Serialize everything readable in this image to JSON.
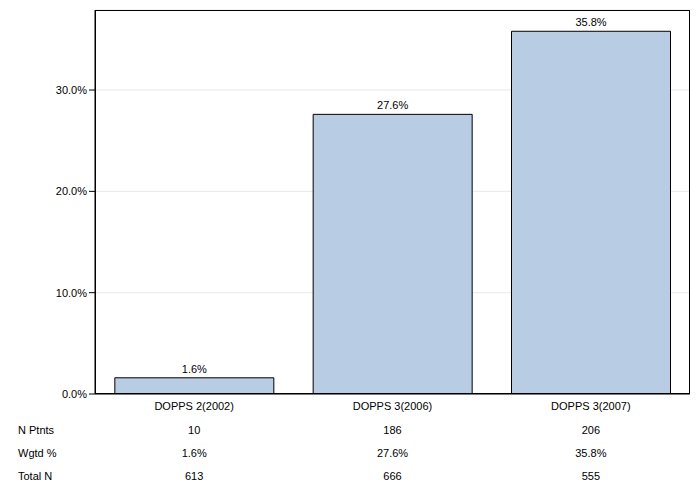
{
  "chart_data": {
    "type": "bar",
    "categories": [
      "DOPPS 2(2002)",
      "DOPPS 3(2006)",
      "DOPPS 3(2007)"
    ],
    "values": [
      1.6,
      27.6,
      35.8
    ],
    "value_labels": [
      "1.6%",
      "27.6%",
      "35.8%"
    ],
    "data_labels": true,
    "color": "#b8cce4",
    "ylim": [
      0,
      37.9
    ],
    "yticks": [
      {
        "value": 0,
        "label": "0.0%"
      },
      {
        "value": 10,
        "label": "10.0%"
      },
      {
        "value": 20,
        "label": "20.0%"
      },
      {
        "value": 30,
        "label": "30.0%"
      }
    ],
    "grid": true,
    "table": {
      "rows": [
        {
          "label": "N Ptnts",
          "cells": [
            "10",
            "186",
            "206"
          ]
        },
        {
          "label": "Wgtd %",
          "cells": [
            "1.6%",
            "27.6%",
            "35.8%"
          ]
        },
        {
          "label": "Total N",
          "cells": [
            "613",
            "666",
            "555"
          ]
        }
      ]
    }
  }
}
